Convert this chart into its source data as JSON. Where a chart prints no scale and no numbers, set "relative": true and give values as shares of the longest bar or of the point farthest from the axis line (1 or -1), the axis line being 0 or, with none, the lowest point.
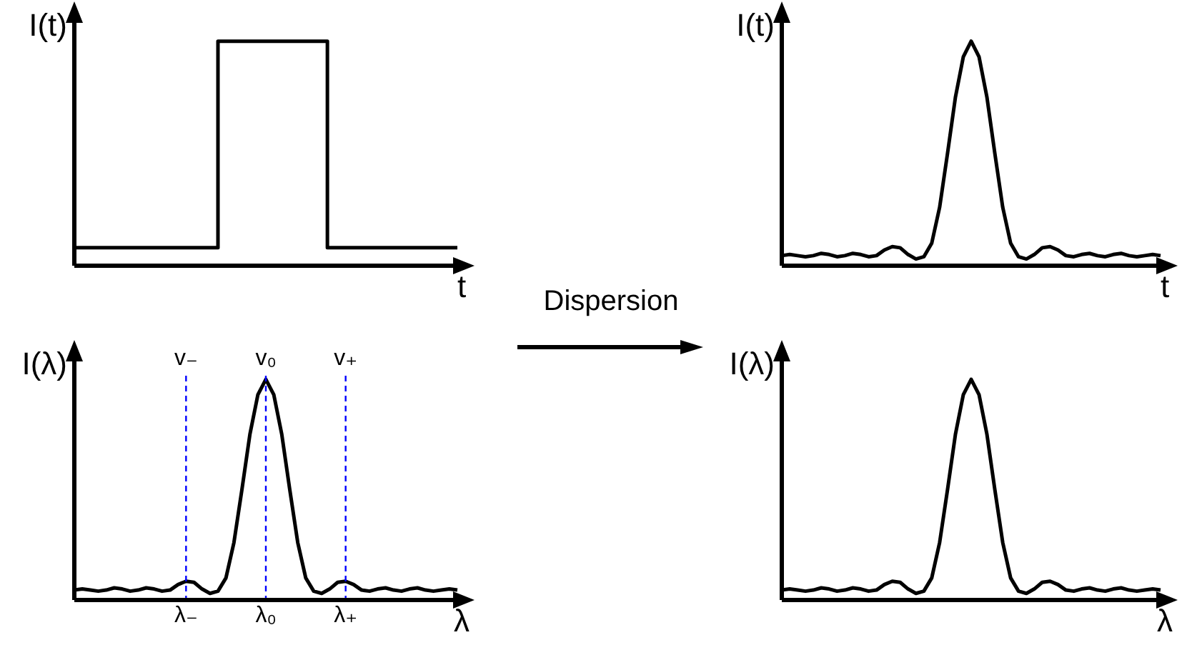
{
  "chart_data": [
    {
      "type": "step",
      "relative": true,
      "ylabel": "I(t)",
      "xlabel": "t",
      "tick_labels": false,
      "categories": [
        null,
        null,
        null,
        null,
        null,
        null,
        null,
        null,
        null,
        null,
        null,
        null,
        null,
        null,
        null,
        null,
        null,
        null,
        null,
        null,
        null,
        null,
        null,
        null,
        null,
        null,
        null,
        null,
        null
      ],
      "series": [
        {
          "color": "#000000",
          "values": [
            0.08,
            0.08,
            0.08,
            0.08,
            0.08,
            0.08,
            0.08,
            0.08,
            0.08,
            0.08,
            0.08,
            1,
            1,
            1,
            1,
            1,
            1,
            1,
            1,
            0.08,
            0.08,
            0.08,
            0.08,
            0.08,
            0.08,
            0.08,
            0.08,
            0.08,
            0.08
          ]
        }
      ]
    },
    {
      "type": "line",
      "relative": true,
      "ylabel": "I(t)",
      "xlabel": "t",
      "tick_labels": false,
      "categories": [
        null,
        null,
        null,
        null,
        null,
        null,
        null,
        null,
        null,
        null,
        null,
        null,
        null,
        null,
        null,
        null,
        null,
        null,
        null,
        null,
        null,
        null,
        null,
        null,
        null,
        null,
        null,
        null,
        null,
        null,
        null,
        null,
        null,
        null,
        null,
        null,
        null,
        null,
        null,
        null,
        null,
        null,
        null,
        null,
        null,
        null,
        null,
        null,
        null
      ],
      "series": [
        {
          "color": "#000000",
          "values": [
            0.045,
            0.05,
            0.045,
            0.04,
            0.045,
            0.055,
            0.05,
            0.04,
            0.045,
            0.055,
            0.05,
            0.04,
            0.045,
            0.07,
            0.085,
            0.08,
            0.05,
            0.03,
            0.04,
            0.1,
            0.26,
            0.5,
            0.75,
            0.93,
            1,
            0.93,
            0.75,
            0.5,
            0.26,
            0.1,
            0.04,
            0.03,
            0.05,
            0.08,
            0.085,
            0.07,
            0.045,
            0.04,
            0.05,
            0.055,
            0.045,
            0.04,
            0.05,
            0.055,
            0.045,
            0.04,
            0.045,
            0.05,
            0.045
          ]
        }
      ]
    },
    {
      "type": "line",
      "relative": true,
      "ylabel": "I(λ)",
      "xlabel": "λ",
      "tick_labels": "x",
      "categories": [
        null,
        null,
        null,
        null,
        null,
        null,
        null,
        null,
        null,
        null,
        null,
        null,
        null,
        null,
        "λ₋",
        null,
        null,
        null,
        null,
        null,
        null,
        null,
        null,
        null,
        "λ₀",
        null,
        null,
        null,
        null,
        null,
        null,
        null,
        null,
        null,
        "λ₊",
        null,
        null,
        null,
        null,
        null,
        null,
        null,
        null,
        null,
        null,
        null,
        null,
        null,
        null
      ],
      "ref_lines": [
        {
          "axis": "x",
          "value": "λ₋",
          "label": "v₋",
          "color": "#0000ff",
          "line_style": "dashed"
        },
        {
          "axis": "x",
          "value": "λ₀",
          "label": "v₀",
          "color": "#0000ff",
          "line_style": "dashed"
        },
        {
          "axis": "x",
          "value": "λ₊",
          "label": "v₊",
          "color": "#0000ff",
          "line_style": "dashed"
        }
      ],
      "series": [
        {
          "color": "#000000",
          "values": [
            0.045,
            0.05,
            0.045,
            0.04,
            0.045,
            0.055,
            0.05,
            0.04,
            0.045,
            0.055,
            0.05,
            0.04,
            0.045,
            0.07,
            0.085,
            0.08,
            0.05,
            0.03,
            0.04,
            0.1,
            0.26,
            0.5,
            0.75,
            0.93,
            1,
            0.93,
            0.75,
            0.5,
            0.26,
            0.1,
            0.04,
            0.03,
            0.05,
            0.08,
            0.085,
            0.07,
            0.045,
            0.04,
            0.05,
            0.055,
            0.045,
            0.04,
            0.05,
            0.055,
            0.045,
            0.04,
            0.045,
            0.05,
            0.045
          ]
        }
      ]
    },
    {
      "type": "line",
      "relative": true,
      "ylabel": "I(λ)",
      "xlabel": "λ",
      "tick_labels": false,
      "categories": [
        null,
        null,
        null,
        null,
        null,
        null,
        null,
        null,
        null,
        null,
        null,
        null,
        null,
        null,
        null,
        null,
        null,
        null,
        null,
        null,
        null,
        null,
        null,
        null,
        null,
        null,
        null,
        null,
        null,
        null,
        null,
        null,
        null,
        null,
        null,
        null,
        null,
        null,
        null,
        null,
        null,
        null,
        null,
        null,
        null,
        null,
        null,
        null,
        null
      ],
      "series": [
        {
          "color": "#000000",
          "values": [
            0.045,
            0.05,
            0.045,
            0.04,
            0.045,
            0.055,
            0.05,
            0.04,
            0.045,
            0.055,
            0.05,
            0.04,
            0.045,
            0.07,
            0.085,
            0.08,
            0.05,
            0.03,
            0.04,
            0.1,
            0.26,
            0.5,
            0.75,
            0.93,
            1,
            0.93,
            0.75,
            0.5,
            0.26,
            0.1,
            0.04,
            0.03,
            0.05,
            0.08,
            0.085,
            0.07,
            0.045,
            0.04,
            0.05,
            0.055,
            0.045,
            0.04,
            0.05,
            0.055,
            0.045,
            0.04,
            0.045,
            0.05,
            0.045
          ]
        }
      ]
    },
    {
      "type": "other",
      "annotations": [
        "Dispersion"
      ]
    }
  ]
}
